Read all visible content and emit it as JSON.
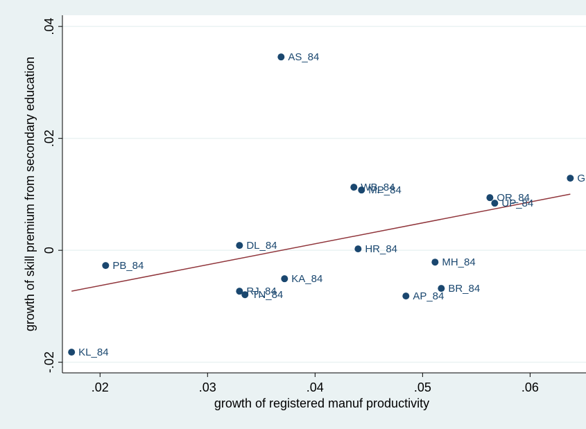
{
  "chart_data": {
    "type": "scatter",
    "x_label": "growth of registered manuf productivity",
    "y_label": "growth of skill premium from secondary education",
    "xlim": [
      0.0165,
      0.0652
    ],
    "ylim": [
      -0.0219,
      0.042
    ],
    "xticks": [
      {
        "value": 0.02,
        "label": ".02"
      },
      {
        "value": 0.03,
        "label": ".03"
      },
      {
        "value": 0.04,
        "label": ".04"
      },
      {
        "value": 0.05,
        "label": ".05"
      },
      {
        "value": 0.06,
        "label": ".06"
      }
    ],
    "yticks": [
      {
        "value": -0.02,
        "label": "-.02"
      },
      0,
      {
        "value": 0.02,
        "label": ".02"
      },
      {
        "value": 0.04,
        "label": ".04"
      }
    ],
    "grid": true,
    "points": {
      "color": "#1a476f",
      "labels": [
        "AS_84",
        "WB_84",
        "MP_84",
        "G",
        "OR_84",
        "UP_84",
        "DL_84",
        "HR_84",
        "MH_84",
        "PB_84",
        "KA_84",
        "RJ_84",
        "TN_84",
        "BR_84",
        "AP_84",
        "KL_84"
      ],
      "x": [
        0.03684,
        0.04361,
        0.04432,
        0.06374,
        0.05626,
        0.05671,
        0.03297,
        0.044,
        0.05116,
        0.02052,
        0.03716,
        0.03297,
        0.03348,
        0.05174,
        0.04845,
        0.01735
      ],
      "y": [
        0.03455,
        0.01127,
        0.01077,
        0.01288,
        0.00941,
        0.00842,
        0.00087,
        0.00025,
        -0.00211,
        -0.00272,
        -0.00508,
        -0.00731,
        -0.00793,
        -0.00681,
        -0.00817,
        -0.0182
      ]
    },
    "fit": {
      "color": "#90353b",
      "x": [
        0.01735,
        0.06374
      ],
      "y": [
        -0.0073,
        0.01003
      ]
    }
  }
}
